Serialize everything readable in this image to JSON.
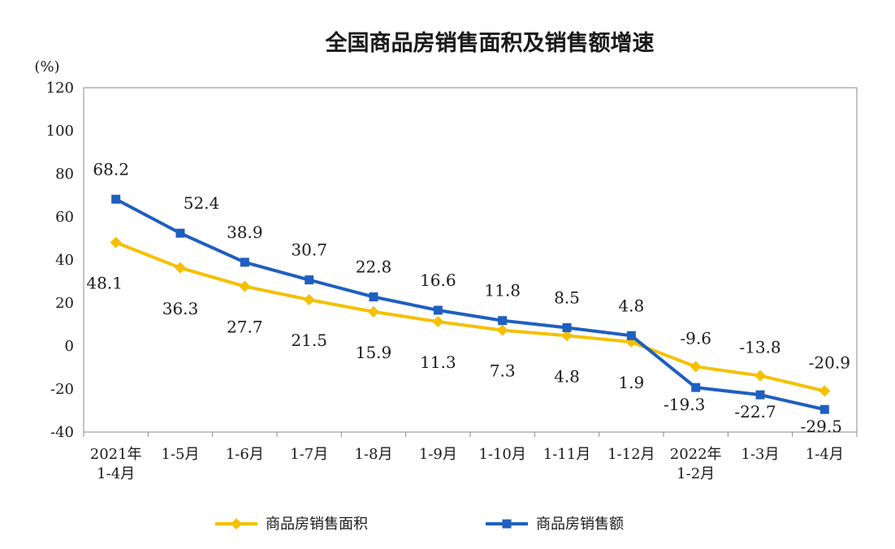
{
  "chart_data": {
    "type": "line",
    "title": "全国商品房销售面积及销售额增速",
    "unit": "(%)",
    "categories": [
      [
        "2021年",
        "1-4月"
      ],
      [
        "1-5月"
      ],
      [
        "1-6月"
      ],
      [
        "1-7月"
      ],
      [
        "1-8月"
      ],
      [
        "1-9月"
      ],
      [
        "1-10月"
      ],
      [
        "1-11月"
      ],
      [
        "1-12月"
      ],
      [
        "2022年",
        "1-2月"
      ],
      [
        "1-3月"
      ],
      [
        "1-4月"
      ]
    ],
    "ylim": [
      -40,
      120
    ],
    "yticks": [
      "120",
      "100",
      "80",
      "60",
      "40",
      "20",
      "0",
      "-20",
      "-40"
    ],
    "yticks_values": [
      120,
      100,
      80,
      60,
      40,
      20,
      0,
      -20,
      -40
    ],
    "series": [
      {
        "name": "商品房销售面积",
        "color": "#f5c000",
        "marker": "diamond",
        "values": [
          48.1,
          36.3,
          27.7,
          21.5,
          15.9,
          11.3,
          7.3,
          4.8,
          1.9,
          -9.6,
          -13.8,
          -20.9
        ],
        "labels": [
          "48.1",
          "36.3",
          "27.7",
          "21.5",
          "15.9",
          "11.3",
          "7.3",
          "4.8",
          "1.9",
          "-9.6",
          "-13.8",
          "-20.9"
        ]
      },
      {
        "name": "商品房销售额",
        "color": "#1f5fc0",
        "marker": "square",
        "values": [
          68.2,
          52.4,
          38.9,
          30.7,
          22.8,
          16.6,
          11.8,
          8.5,
          4.8,
          -19.3,
          -22.7,
          -29.5
        ],
        "labels": [
          "68.2",
          "52.4",
          "38.9",
          "30.7",
          "22.8",
          "16.6",
          "11.8",
          "8.5",
          "4.8",
          "-19.3",
          "-22.7",
          "-29.5"
        ]
      }
    ],
    "legend": "bottom",
    "grid": false
  }
}
